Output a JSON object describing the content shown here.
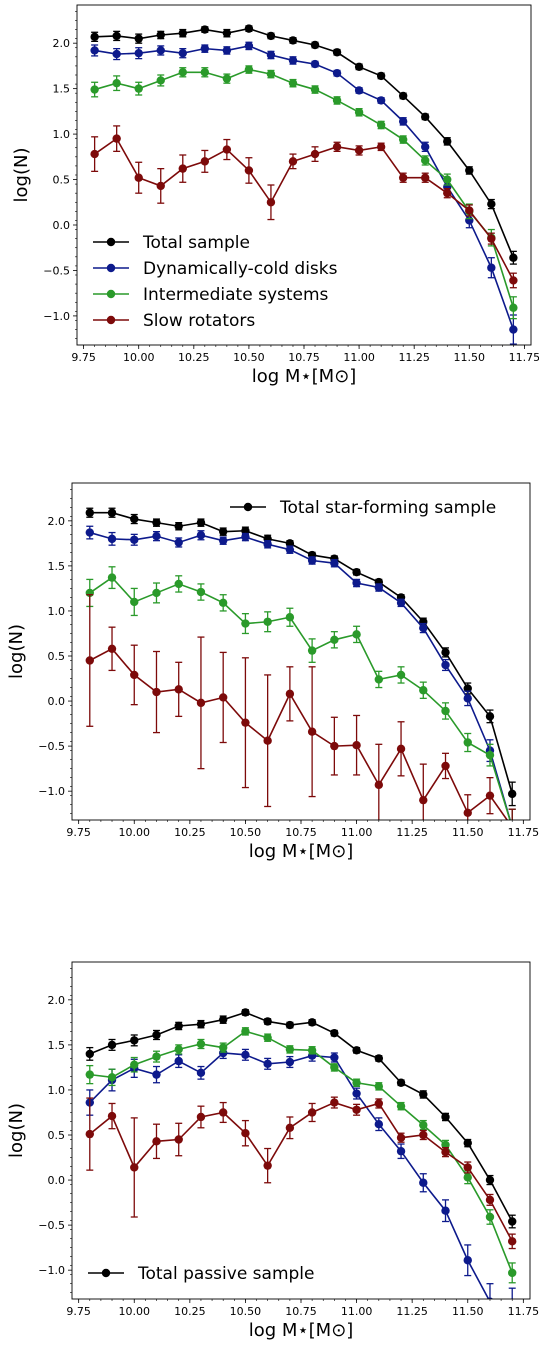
{
  "chart_data": [
    {
      "type": "line",
      "error_bars": true,
      "xlabel": "log M⋆[M⊙]",
      "ylabel": "log(N)",
      "xlim": [
        9.72,
        11.78
      ],
      "ylim": [
        -1.32,
        2.42
      ],
      "xticks": [
        9.75,
        10.0,
        10.25,
        10.5,
        10.75,
        11.0,
        11.25,
        11.5,
        11.75
      ],
      "xtick_labels": [
        "9.75",
        "10.00",
        "10.25",
        "10.50",
        "10.75",
        "11.00",
        "11.25",
        "11.50",
        "11.75"
      ],
      "yticks": [
        -1.0,
        -0.5,
        0.0,
        0.5,
        1.0,
        1.5,
        2.0
      ],
      "ytick_labels": [
        "−1.0",
        "−0.5",
        "0.0",
        "0.5",
        "1.0",
        "1.5",
        "2.0"
      ],
      "legend_position": "lower-left",
      "x": [
        9.8,
        9.9,
        10.0,
        10.1,
        10.2,
        10.3,
        10.4,
        10.5,
        10.6,
        10.7,
        10.8,
        10.9,
        11.0,
        11.1,
        11.2,
        11.3,
        11.4,
        11.5,
        11.6,
        11.7
      ],
      "series": [
        {
          "name": "Total sample",
          "color": "#000000",
          "values": [
            2.07,
            2.08,
            2.05,
            2.09,
            2.11,
            2.15,
            2.11,
            2.16,
            2.08,
            2.03,
            1.98,
            1.9,
            1.74,
            1.64,
            1.42,
            1.19,
            0.92,
            0.6,
            0.23,
            -0.36
          ],
          "errors": [
            0.05,
            0.05,
            0.05,
            0.04,
            0.04,
            0.03,
            0.04,
            0.03,
            0.03,
            0.03,
            0.03,
            0.03,
            0.03,
            0.03,
            0.03,
            0.03,
            0.04,
            0.04,
            0.05,
            0.07
          ]
        },
        {
          "name": "Dynamically-cold disks",
          "color": "#0d1a8c",
          "values": [
            1.92,
            1.88,
            1.89,
            1.92,
            1.89,
            1.94,
            1.92,
            1.97,
            1.87,
            1.81,
            1.77,
            1.67,
            1.48,
            1.37,
            1.14,
            0.86,
            0.42,
            0.05,
            -0.47,
            -1.15
          ],
          "errors": [
            0.06,
            0.06,
            0.06,
            0.05,
            0.05,
            0.04,
            0.04,
            0.04,
            0.04,
            0.04,
            0.03,
            0.03,
            0.03,
            0.03,
            0.04,
            0.05,
            0.06,
            0.08,
            0.11,
            0.16
          ]
        },
        {
          "name": "Intermediate systems",
          "color": "#2a9a2a",
          "values": [
            1.49,
            1.56,
            1.5,
            1.59,
            1.68,
            1.68,
            1.61,
            1.71,
            1.66,
            1.56,
            1.49,
            1.37,
            1.24,
            1.1,
            0.94,
            0.71,
            0.5,
            0.15,
            -0.14,
            -0.91
          ],
          "errors": [
            0.08,
            0.08,
            0.07,
            0.06,
            0.05,
            0.05,
            0.05,
            0.04,
            0.04,
            0.04,
            0.04,
            0.04,
            0.04,
            0.04,
            0.04,
            0.05,
            0.06,
            0.08,
            0.09,
            0.12
          ]
        },
        {
          "name": "Slow rotators",
          "color": "#7d0a0a",
          "values": [
            0.78,
            0.95,
            0.52,
            0.43,
            0.62,
            0.7,
            0.83,
            0.6,
            0.25,
            0.7,
            0.78,
            0.86,
            0.82,
            0.86,
            0.52,
            0.52,
            0.35,
            0.16,
            -0.15,
            -0.61
          ],
          "errors": [
            0.19,
            0.14,
            0.17,
            0.19,
            0.15,
            0.12,
            0.11,
            0.14,
            0.19,
            0.08,
            0.08,
            0.05,
            0.05,
            0.04,
            0.05,
            0.05,
            0.05,
            0.06,
            0.06,
            0.08
          ]
        }
      ]
    },
    {
      "type": "line",
      "error_bars": true,
      "xlabel": "log M⋆[M⊙]",
      "ylabel": "log(N)",
      "xlim": [
        9.72,
        11.78
      ],
      "ylim": [
        -1.32,
        2.42
      ],
      "xticks": [
        9.75,
        10.0,
        10.25,
        10.5,
        10.75,
        11.0,
        11.25,
        11.5,
        11.75
      ],
      "xtick_labels": [
        "9.75",
        "10.00",
        "10.25",
        "10.50",
        "10.75",
        "11.00",
        "11.25",
        "11.50",
        "11.75"
      ],
      "yticks": [
        -1.0,
        -0.5,
        0.0,
        0.5,
        1.0,
        1.5,
        2.0
      ],
      "ytick_labels": [
        "−1.0",
        "−0.5",
        "0.0",
        "0.5",
        "1.0",
        "1.5",
        "2.0"
      ],
      "legend_position": "top-right",
      "legend": [
        "Total star-forming sample"
      ],
      "x": [
        9.8,
        9.9,
        10.0,
        10.1,
        10.2,
        10.3,
        10.4,
        10.5,
        10.6,
        10.7,
        10.8,
        10.9,
        11.0,
        11.1,
        11.2,
        11.3,
        11.4,
        11.5,
        11.6,
        11.7
      ],
      "series": [
        {
          "name": "Total star-forming sample",
          "color": "#000000",
          "values": [
            2.09,
            2.09,
            2.02,
            1.98,
            1.94,
            1.98,
            1.88,
            1.89,
            1.8,
            1.75,
            1.62,
            1.58,
            1.43,
            1.32,
            1.15,
            0.88,
            0.54,
            0.14,
            -0.17,
            -1.03
          ],
          "errors": [
            0.05,
            0.05,
            0.05,
            0.04,
            0.04,
            0.04,
            0.04,
            0.04,
            0.04,
            0.03,
            0.03,
            0.03,
            0.03,
            0.03,
            0.03,
            0.04,
            0.05,
            0.06,
            0.07,
            0.13
          ]
        },
        {
          "color": "#0d1a8c",
          "values": [
            1.87,
            1.8,
            1.79,
            1.83,
            1.76,
            1.84,
            1.78,
            1.82,
            1.74,
            1.68,
            1.56,
            1.53,
            1.31,
            1.26,
            1.09,
            0.81,
            0.4,
            0.03,
            -0.55,
            -1.4
          ],
          "errors": [
            0.07,
            0.07,
            0.06,
            0.05,
            0.05,
            0.05,
            0.04,
            0.04,
            0.04,
            0.04,
            0.04,
            0.04,
            0.04,
            0.04,
            0.04,
            0.05,
            0.06,
            0.08,
            0.12,
            0.2
          ]
        },
        {
          "color": "#2a9a2a",
          "values": [
            1.2,
            1.37,
            1.1,
            1.2,
            1.3,
            1.21,
            1.09,
            0.86,
            0.88,
            0.93,
            0.56,
            0.68,
            0.74,
            0.24,
            0.29,
            0.12,
            -0.11,
            -0.46,
            -0.6,
            -1.4
          ],
          "errors": [
            0.15,
            0.12,
            0.15,
            0.11,
            0.09,
            0.09,
            0.09,
            0.11,
            0.11,
            0.1,
            0.13,
            0.09,
            0.09,
            0.09,
            0.09,
            0.09,
            0.09,
            0.1,
            0.12,
            0.2
          ]
        },
        {
          "color": "#7d0a0a",
          "values": [
            0.45,
            0.58,
            0.29,
            0.1,
            0.13,
            -0.02,
            0.04,
            -0.24,
            -0.44,
            0.08,
            -0.34,
            -0.5,
            -0.49,
            -0.93,
            -0.53,
            -1.1,
            -0.72,
            -1.24,
            -1.05,
            -1.4
          ],
          "errors": [
            0.73,
            0.24,
            0.33,
            0.45,
            0.3,
            0.73,
            0.5,
            0.72,
            0.73,
            0.3,
            0.72,
            0.32,
            0.33,
            0.45,
            0.3,
            0.4,
            0.14,
            0.2,
            0.2,
            0.2
          ]
        }
      ]
    },
    {
      "type": "line",
      "error_bars": true,
      "xlabel": "log M⋆[M⊙]",
      "ylabel": "log(N)",
      "xlim": [
        9.72,
        11.78
      ],
      "ylim": [
        -1.32,
        2.42
      ],
      "xticks": [
        9.75,
        10.0,
        10.25,
        10.5,
        10.75,
        11.0,
        11.25,
        11.5,
        11.75
      ],
      "xtick_labels": [
        "9.75",
        "10.00",
        "10.25",
        "10.50",
        "10.75",
        "11.00",
        "11.25",
        "11.50",
        "11.75"
      ],
      "yticks": [
        -1.0,
        -0.5,
        0.0,
        0.5,
        1.0,
        1.5,
        2.0
      ],
      "ytick_labels": [
        "−1.0",
        "−0.5",
        "0.0",
        "0.5",
        "1.0",
        "1.5",
        "2.0"
      ],
      "legend_position": "lower-left",
      "legend": [
        "Total passive sample"
      ],
      "x": [
        9.8,
        9.9,
        10.0,
        10.1,
        10.2,
        10.3,
        10.4,
        10.5,
        10.6,
        10.7,
        10.8,
        10.9,
        11.0,
        11.1,
        11.2,
        11.3,
        11.4,
        11.5,
        11.6,
        11.7
      ],
      "series": [
        {
          "name": "Total passive sample",
          "color": "#000000",
          "values": [
            1.4,
            1.5,
            1.55,
            1.61,
            1.71,
            1.73,
            1.78,
            1.86,
            1.76,
            1.72,
            1.75,
            1.63,
            1.44,
            1.35,
            1.08,
            0.95,
            0.7,
            0.41,
            0.0,
            -0.46
          ],
          "errors": [
            0.07,
            0.06,
            0.06,
            0.05,
            0.04,
            0.04,
            0.04,
            0.03,
            0.03,
            0.03,
            0.03,
            0.03,
            0.03,
            0.03,
            0.03,
            0.04,
            0.04,
            0.04,
            0.05,
            0.07
          ]
        },
        {
          "color": "#0d1a8c",
          "values": [
            0.86,
            1.11,
            1.24,
            1.17,
            1.32,
            1.19,
            1.41,
            1.39,
            1.29,
            1.31,
            1.38,
            1.36,
            0.96,
            0.62,
            0.32,
            -0.03,
            -0.34,
            -0.89,
            -1.35,
            -1.4
          ],
          "errors": [
            0.14,
            0.12,
            0.1,
            0.09,
            0.07,
            0.07,
            0.06,
            0.06,
            0.06,
            0.06,
            0.06,
            0.05,
            0.06,
            0.07,
            0.08,
            0.1,
            0.12,
            0.17,
            0.2,
            0.2
          ]
        },
        {
          "color": "#2a9a2a",
          "values": [
            1.17,
            1.14,
            1.28,
            1.37,
            1.45,
            1.51,
            1.47,
            1.65,
            1.58,
            1.45,
            1.44,
            1.25,
            1.08,
            1.04,
            0.82,
            0.61,
            0.39,
            0.03,
            -0.41,
            -1.03
          ],
          "errors": [
            0.1,
            0.09,
            0.08,
            0.06,
            0.05,
            0.05,
            0.05,
            0.04,
            0.04,
            0.04,
            0.04,
            0.04,
            0.04,
            0.04,
            0.04,
            0.05,
            0.05,
            0.07,
            0.08,
            0.11
          ]
        },
        {
          "color": "#7d0a0a",
          "values": [
            0.51,
            0.71,
            0.14,
            0.43,
            0.45,
            0.7,
            0.75,
            0.52,
            0.16,
            0.58,
            0.75,
            0.86,
            0.78,
            0.85,
            0.47,
            0.5,
            0.31,
            0.14,
            -0.22,
            -0.68
          ],
          "errors": [
            0.4,
            0.14,
            0.55,
            0.19,
            0.18,
            0.12,
            0.11,
            0.14,
            0.19,
            0.12,
            0.1,
            0.06,
            0.06,
            0.05,
            0.05,
            0.05,
            0.05,
            0.06,
            0.06,
            0.08
          ]
        }
      ]
    }
  ]
}
